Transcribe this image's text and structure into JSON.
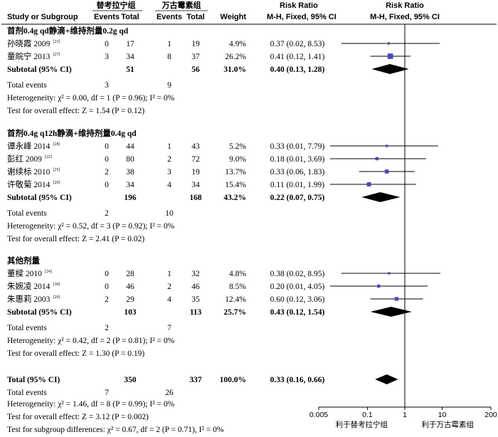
{
  "chart_data": {
    "type": "forest",
    "headers": {
      "study": "Study or Subgroup",
      "group1": "替考拉宁组",
      "group2": "万古霉素组",
      "events": "Events",
      "total": "Total",
      "weight": "Weight",
      "rr": "Risk Ratio",
      "method": "M-H, Fixed, 95% CI"
    },
    "subgroups": [
      {
        "title": "首剂0.4g qd静滴+维持剂量0.2g qd",
        "studies": [
          {
            "name": "孙晓霞 2009",
            "ref": "[23]",
            "e1": "0",
            "n1": "17",
            "e2": "1",
            "n2": "19",
            "weight": "4.9%",
            "ci_text": "0.37 (0.02, 8.53)",
            "rr": 0.37,
            "lo": 0.02,
            "hi": 8.53
          },
          {
            "name": "童皖宁 2013",
            "ref": "[27]",
            "e1": "3",
            "n1": "34",
            "e2": "8",
            "n2": "37",
            "weight": "26.2%",
            "ci_text": "0.41 (0.12, 1.41)",
            "rr": 0.41,
            "lo": 0.12,
            "hi": 1.41
          }
        ],
        "subtotal": {
          "label": "Subtotal (95% CI)",
          "n1": "51",
          "n2": "56",
          "weight": "31.0%",
          "ci_text": "0.40 (0.13, 1.28)",
          "rr": 0.4,
          "lo": 0.13,
          "hi": 1.28
        },
        "total_events": {
          "label": "Total events",
          "e1": "3",
          "e2": "9"
        },
        "heterogeneity": "Heterogeneity: χ² = 0.00, df = 1 (P = 0.96); I² = 0%",
        "overall": "Test for overall effect: Z = 1.54 (P = 0.12)"
      },
      {
        "title": "首剂0.4g q12h静滴+维持剂量0.4g qd",
        "studies": [
          {
            "name": "谭永峰 2014",
            "ref": "[28]",
            "e1": "0",
            "n1": "44",
            "e2": "1",
            "n2": "43",
            "weight": "5.2%",
            "ci_text": "0.33 (0.01, 7.79)",
            "rr": 0.33,
            "lo": 0.01,
            "hi": 7.79
          },
          {
            "name": "彭红 2009",
            "ref": "[22]",
            "e1": "0",
            "n1": "80",
            "e2": "2",
            "n2": "72",
            "weight": "9.0%",
            "ci_text": "0.18 (0.01, 3.69)",
            "rr": 0.18,
            "lo": 0.01,
            "hi": 3.69
          },
          {
            "name": "谢续标 2010",
            "ref": "[25]",
            "e1": "2",
            "n1": "38",
            "e2": "3",
            "n2": "19",
            "weight": "13.7%",
            "ci_text": "0.33 (0.06, 1.83)",
            "rr": 0.33,
            "lo": 0.06,
            "hi": 1.83
          },
          {
            "name": "许敬菊 2014",
            "ref": "[29]",
            "e1": "0",
            "n1": "34",
            "e2": "4",
            "n2": "34",
            "weight": "15.4%",
            "ci_text": "0.11 (0.01, 1.99)",
            "rr": 0.11,
            "lo": 0.01,
            "hi": 1.99
          }
        ],
        "subtotal": {
          "label": "Subtotal (95% CI)",
          "n1": "196",
          "n2": "168",
          "weight": "43.2%",
          "ci_text": "0.22 (0.07, 0.75)",
          "rr": 0.22,
          "lo": 0.07,
          "hi": 0.75
        },
        "total_events": {
          "label": "Total events",
          "e1": "2",
          "e2": "10"
        },
        "heterogeneity": "Heterogeneity: χ² = 0.52, df = 3 (P = 0.92); I² = 0%",
        "overall": "Test for overall effect: Z = 2.41 (P = 0.02)"
      },
      {
        "title": "其他剂量",
        "studies": [
          {
            "name": "董樑 2010",
            "ref": "[24]",
            "e1": "0",
            "n1": "28",
            "e2": "1",
            "n2": "32",
            "weight": "4.8%",
            "ci_text": "0.38 (0.02, 8.95)",
            "rr": 0.38,
            "lo": 0.02,
            "hi": 8.95
          },
          {
            "name": "朱婉凌 2014",
            "ref": "[30]",
            "e1": "0",
            "n1": "46",
            "e2": "2",
            "n2": "46",
            "weight": "8.5%",
            "ci_text": "0.20 (0.01, 4.05)",
            "rr": 0.2,
            "lo": 0.01,
            "hi": 4.05
          },
          {
            "name": "朱惠莉 2003",
            "ref": "[20]",
            "e1": "2",
            "n1": "29",
            "e2": "4",
            "n2": "35",
            "weight": "12.4%",
            "ci_text": "0.60 (0.12, 3.06)",
            "rr": 0.6,
            "lo": 0.12,
            "hi": 3.06
          }
        ],
        "subtotal": {
          "label": "Subtotal (95% CI)",
          "n1": "103",
          "n2": "113",
          "weight": "25.7%",
          "ci_text": "0.43 (0.12, 1.54)",
          "rr": 0.43,
          "lo": 0.12,
          "hi": 1.54
        },
        "total_events": {
          "label": "Total events",
          "e1": "2",
          "e2": "7"
        },
        "heterogeneity": "Heterogeneity: χ² = 0.42, df = 2 (P = 0.81); I² = 0%",
        "overall": "Test for overall effect: Z = 1.30 (P = 0.19)"
      }
    ],
    "total": {
      "label": "Total (95% CI)",
      "n1": "350",
      "n2": "337",
      "weight": "100.0%",
      "ci_text": "0.33 (0.16, 0.66)",
      "rr": 0.33,
      "lo": 0.16,
      "hi": 0.66
    },
    "total_events": {
      "label": "Total events",
      "e1": "7",
      "e2": "26"
    },
    "heterogeneity": "Heterogeneity: χ² = 1.46, df = 8 (P = 0.99); I² = 0%",
    "overall": "Test for overall effect: Z = 3.12 (P = 0.002)",
    "subgroup_diff": "Test for subgroup differences: χ² = 0.67, df = 2 (P = 0.71), I² = 0%",
    "axis": {
      "scale": "log",
      "range": [
        0.005,
        200
      ],
      "ticks": [
        0.005,
        0.1,
        1,
        10,
        200
      ],
      "tick_labels": [
        "0.005",
        "0.1",
        "1",
        "10",
        "200"
      ],
      "favours_left": "利于替考拉宁组",
      "favours_right": "利于万古霉素组"
    },
    "colors": {
      "marker": "#4a4ab8",
      "diamond": "#000000",
      "line": "#000000"
    }
  }
}
